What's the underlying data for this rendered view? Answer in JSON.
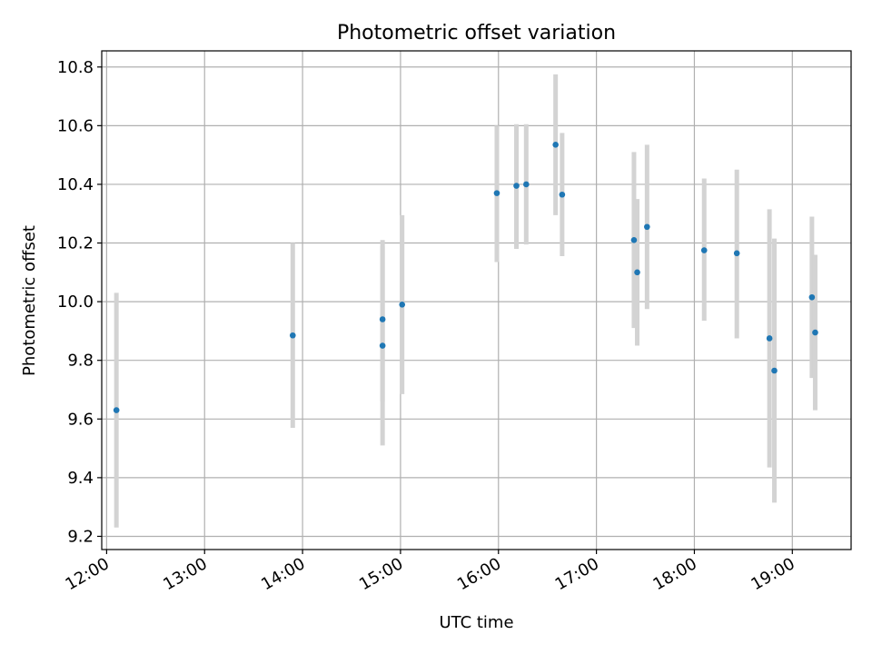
{
  "chart_data": {
    "type": "scatter",
    "title": "Photometric offset variation",
    "xlabel": "UTC time",
    "ylabel": "Photometric offset",
    "x_unit": "UTC hour",
    "xlim": [
      11.95,
      19.6
    ],
    "ylim": [
      9.155,
      10.855
    ],
    "grid": true,
    "x_ticks": [
      {
        "value": 12,
        "label": "12:00"
      },
      {
        "value": 13,
        "label": "13:00"
      },
      {
        "value": 14,
        "label": "14:00"
      },
      {
        "value": 15,
        "label": "15:00"
      },
      {
        "value": 16,
        "label": "16:00"
      },
      {
        "value": 17,
        "label": "17:00"
      },
      {
        "value": 18,
        "label": "18:00"
      },
      {
        "value": 19,
        "label": "19:00"
      }
    ],
    "y_ticks": [
      {
        "value": 9.2,
        "label": "9.2"
      },
      {
        "value": 9.4,
        "label": "9.4"
      },
      {
        "value": 9.6,
        "label": "9.6"
      },
      {
        "value": 9.8,
        "label": "9.8"
      },
      {
        "value": 10.0,
        "label": "10.0"
      },
      {
        "value": 10.2,
        "label": "10.2"
      },
      {
        "value": 10.4,
        "label": "10.4"
      },
      {
        "value": 10.6,
        "label": "10.6"
      },
      {
        "value": 10.8,
        "label": "10.8"
      }
    ],
    "colors": {
      "point": "#1f77b4",
      "errorbar": "#d3d3d3",
      "grid": "#b0b0b0"
    },
    "points": [
      {
        "x": "12:06",
        "y": 9.63,
        "lo": 9.23,
        "hi": 10.03
      },
      {
        "x": "13:54",
        "y": 9.885,
        "lo": 9.57,
        "hi": 10.2
      },
      {
        "x": "14:49",
        "y": 9.94,
        "lo": 9.66,
        "hi": 10.21
      },
      {
        "x": "14:49",
        "y": 9.85,
        "lo": 9.51,
        "hi": 10.19
      },
      {
        "x": "15:01",
        "y": 9.99,
        "lo": 9.685,
        "hi": 10.295
      },
      {
        "x": "15:59",
        "y": 10.37,
        "lo": 10.135,
        "hi": 10.6
      },
      {
        "x": "16:11",
        "y": 10.395,
        "lo": 10.18,
        "hi": 10.605
      },
      {
        "x": "16:17",
        "y": 10.4,
        "lo": 10.195,
        "hi": 10.605
      },
      {
        "x": "16:35",
        "y": 10.535,
        "lo": 10.295,
        "hi": 10.775
      },
      {
        "x": "16:39",
        "y": 10.365,
        "lo": 10.155,
        "hi": 10.575
      },
      {
        "x": "17:23",
        "y": 10.21,
        "lo": 9.91,
        "hi": 10.51
      },
      {
        "x": "17:25",
        "y": 10.1,
        "lo": 9.85,
        "hi": 10.35
      },
      {
        "x": "17:31",
        "y": 10.255,
        "lo": 9.975,
        "hi": 10.535
      },
      {
        "x": "18:06",
        "y": 10.175,
        "lo": 9.935,
        "hi": 10.42
      },
      {
        "x": "18:26",
        "y": 10.165,
        "lo": 9.875,
        "hi": 10.45
      },
      {
        "x": "18:46",
        "y": 9.875,
        "lo": 9.435,
        "hi": 10.315
      },
      {
        "x": "18:49",
        "y": 9.765,
        "lo": 9.315,
        "hi": 10.215
      },
      {
        "x": "19:12",
        "y": 10.015,
        "lo": 9.74,
        "hi": 10.29
      },
      {
        "x": "19:14",
        "y": 9.895,
        "lo": 9.63,
        "hi": 10.16
      }
    ]
  }
}
